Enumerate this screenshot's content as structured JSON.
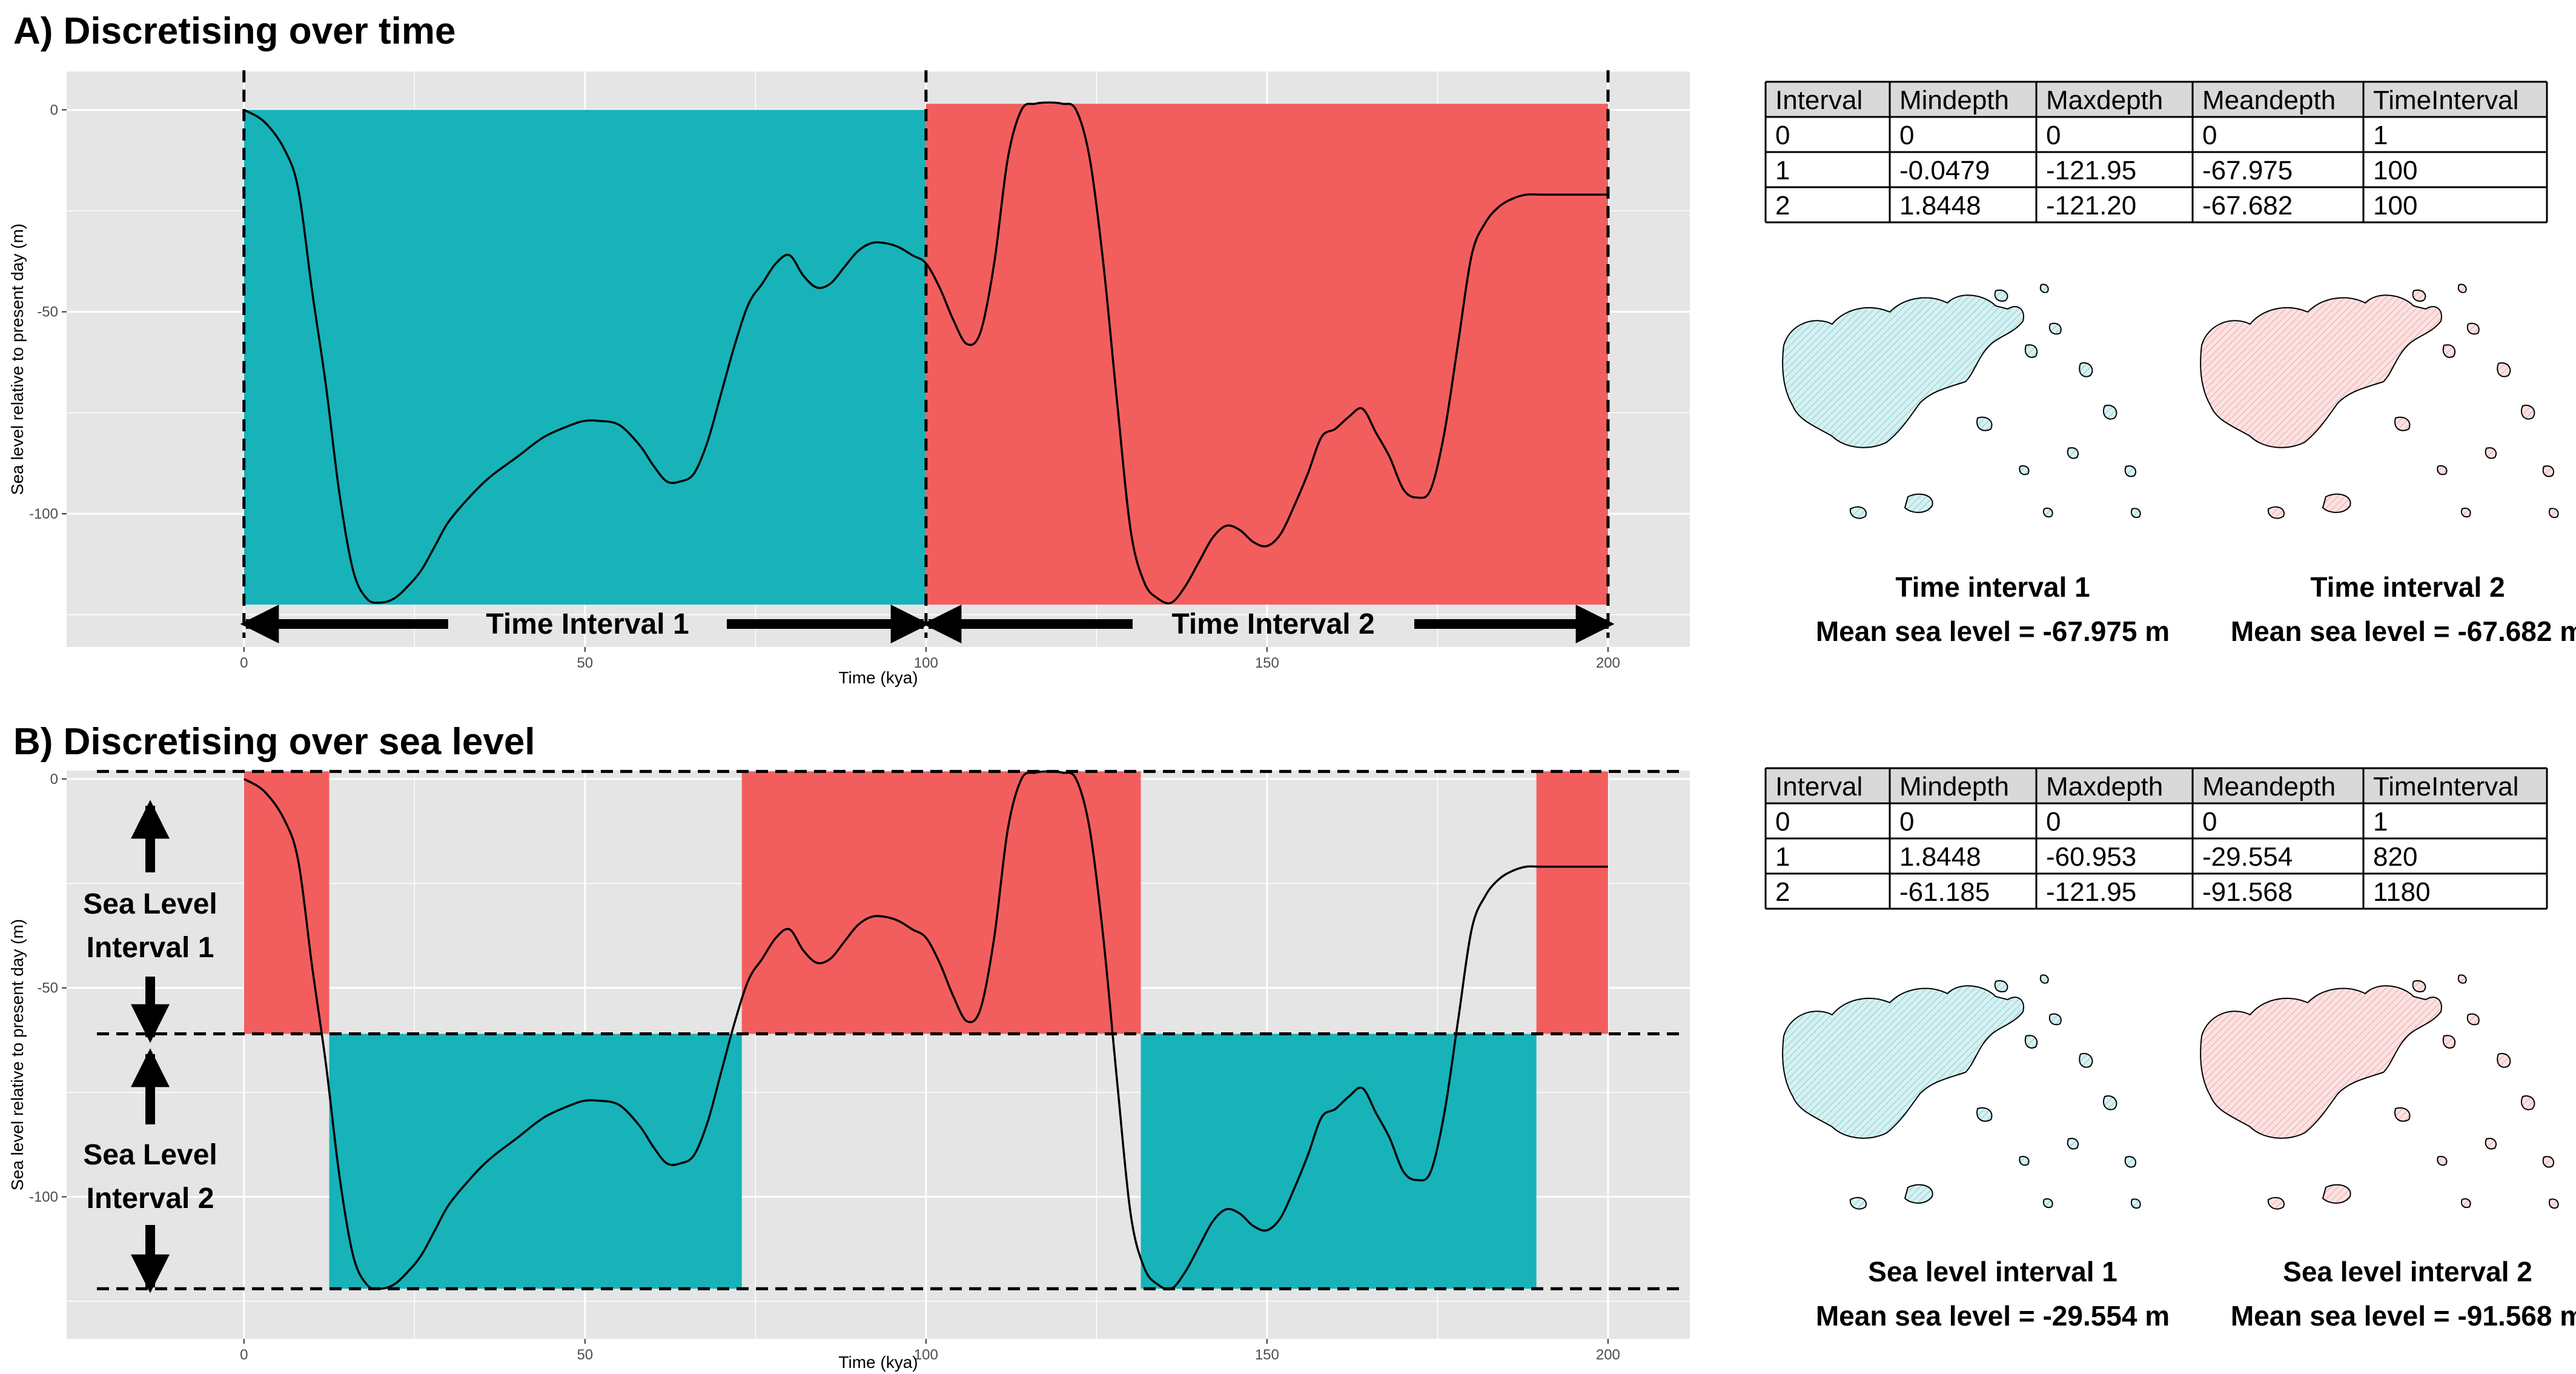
{
  "colors": {
    "teal": "#17B3B9",
    "red": "#F25E5E",
    "panel_bg": "#E5E5E5",
    "grid": "#FFFFFF",
    "line": "#000000",
    "table_header_bg": "#D9D9D9",
    "map_teal_fill": "#D7F0F1",
    "map_red_fill": "#FBE2E2"
  },
  "panels": [
    {
      "title": "A) Discretising over time",
      "xlabel": "Time (kya)",
      "ylabel": "Sea level relative to present day (m)",
      "xticks": [
        0,
        50,
        100,
        150,
        200
      ],
      "yticks": [
        0,
        -50,
        -100
      ],
      "xlim": [
        -26,
        212
      ],
      "ylim": [
        -133,
        9.5
      ],
      "mode": "time",
      "rects": [
        {
          "x0": 0,
          "x1": 100,
          "y0": -122.5,
          "y1": 0,
          "color": "teal"
        },
        {
          "x0": 100,
          "x1": 200,
          "y0": -122.5,
          "y1": 1.5,
          "color": "red"
        }
      ],
      "vlines": [
        0,
        100,
        200
      ],
      "hlines": [],
      "arrow_labels": [
        "Time Interval 1",
        "Time Interval 2"
      ],
      "table": {
        "headers": [
          "Interval",
          "Mindepth",
          "Maxdepth",
          "Meandepth",
          "TimeInterval"
        ],
        "rows": [
          [
            "0",
            "0",
            "0",
            "0",
            "1"
          ],
          [
            "1",
            "-0.0479",
            "-121.95",
            "-67.975",
            "100"
          ],
          [
            "2",
            "1.8448",
            "-121.20",
            "-67.682",
            "100"
          ]
        ]
      },
      "maps": [
        {
          "caption_1": "Time interval 1",
          "caption_2": "Mean sea level = -67.975 m",
          "color": "teal"
        },
        {
          "caption_1": "Time interval 2",
          "caption_2": "Mean sea level = -67.682 m",
          "color": "red"
        }
      ]
    },
    {
      "title": "B) Discretising over sea level",
      "xlabel": "Time (kya)",
      "ylabel": "Sea level relative to present day (m)",
      "xticks": [
        0,
        50,
        100,
        150,
        200
      ],
      "yticks": [
        0,
        -50,
        -100
      ],
      "xlim": [
        -26,
        212
      ],
      "ylim": [
        -134,
        2
      ],
      "mode": "sea",
      "rects": [
        {
          "x0": 0,
          "x1": 12.5,
          "y0": -61,
          "y1": 1.8,
          "color": "red"
        },
        {
          "x0": 73,
          "x1": 131.5,
          "y0": -61,
          "y1": 1.8,
          "color": "red"
        },
        {
          "x0": 189.5,
          "x1": 200,
          "y0": -61,
          "y1": 1.8,
          "color": "red"
        },
        {
          "x0": 12.5,
          "x1": 73,
          "y0": -122,
          "y1": -61,
          "color": "teal"
        },
        {
          "x0": 131.5,
          "x1": 189.5,
          "y0": -122,
          "y1": -61,
          "color": "teal"
        }
      ],
      "vlines": [],
      "hlines": [
        1.8,
        -61,
        -122
      ],
      "arrow_labels": [
        "Sea Level",
        "Interval 1",
        "Sea Level",
        "Interval 2"
      ],
      "table": {
        "headers": [
          "Interval",
          "Mindepth",
          "Maxdepth",
          "Meandepth",
          "TimeInterval"
        ],
        "rows": [
          [
            "0",
            "0",
            "0",
            "0",
            "1"
          ],
          [
            "1",
            "1.8448",
            "-60.953",
            "-29.554",
            "820"
          ],
          [
            "2",
            "-61.185",
            "-121.95",
            "-91.568",
            "1180"
          ]
        ]
      },
      "maps": [
        {
          "caption_1": "Sea level interval 1",
          "caption_2": "Mean sea level = -29.554 m",
          "color": "teal"
        },
        {
          "caption_1": "Sea level interval 2",
          "caption_2": "Mean sea level = -91.568 m",
          "color": "red"
        }
      ]
    }
  ],
  "chart_data": {
    "type": "line",
    "title": "",
    "xlabel": "Time (kya)",
    "ylabel": "Sea level relative to present day (m)",
    "xlim": [
      0,
      200
    ],
    "ylim": [
      -125,
      5
    ],
    "series": [
      {
        "x": [
          0,
          3,
          6,
          8,
          10,
          12,
          14,
          16,
          18,
          20,
          22,
          24,
          26,
          28,
          30,
          33,
          36,
          40,
          44,
          48,
          50,
          52,
          55,
          58,
          60,
          62,
          64,
          66,
          68,
          70,
          72,
          74,
          76,
          78,
          80,
          82,
          84,
          86,
          88,
          90,
          92,
          94,
          96,
          98,
          100,
          102,
          104,
          106,
          108,
          110,
          112,
          114,
          116,
          118,
          120,
          122,
          124,
          126,
          128,
          130,
          132,
          134,
          136,
          138,
          140,
          142,
          144,
          146,
          148,
          150,
          152,
          154,
          156,
          158,
          160,
          162,
          164,
          166,
          168,
          170,
          172,
          174,
          176,
          178,
          180,
          182,
          184,
          186,
          188,
          190,
          192,
          194,
          196,
          198,
          200
        ],
        "y": [
          0,
          -3,
          -10,
          -20,
          -45,
          -68,
          -95,
          -114,
          -121,
          -122,
          -121,
          -118,
          -114,
          -108,
          -102,
          -96,
          -91,
          -86,
          -81,
          -78,
          -77,
          -77,
          -78,
          -83,
          -88,
          -92,
          -92,
          -90,
          -82,
          -70,
          -58,
          -48,
          -43,
          -38,
          -36,
          -41,
          -44,
          -43,
          -39,
          -35,
          -33,
          -33,
          -34,
          -36,
          -38,
          -44,
          -52,
          -58,
          -55,
          -38,
          -12,
          0,
          1.5,
          1.8,
          1.5,
          0,
          -12,
          -38,
          -72,
          -104,
          -117,
          -121,
          -122,
          -118,
          -112,
          -106,
          -103,
          -104,
          -107,
          -108,
          -105,
          -98,
          -90,
          -81,
          -79,
          -76,
          -74,
          -80,
          -86,
          -94,
          -96,
          -94,
          -80,
          -58,
          -36,
          -28,
          -24,
          -22,
          -21,
          -21,
          -21,
          -21,
          -21,
          -21,
          -21
        ]
      }
    ]
  }
}
